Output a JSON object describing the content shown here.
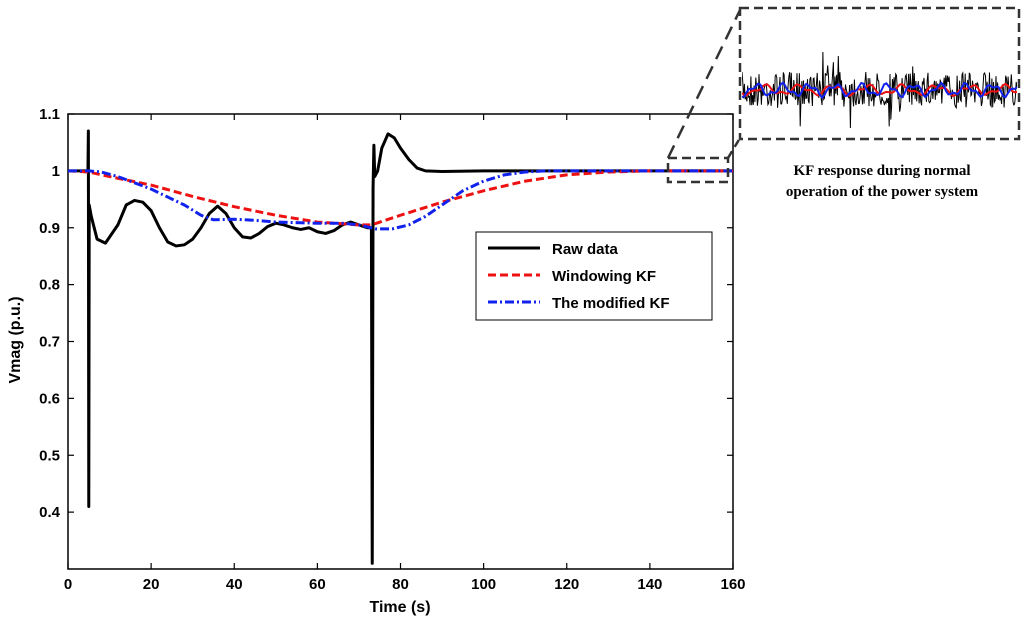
{
  "chart_data": {
    "type": "line",
    "title": "",
    "xlabel": "Time (s)",
    "ylabel": "Vmag (p.u.)",
    "xlim": [
      0,
      160
    ],
    "ylim": [
      0.3,
      1.1
    ],
    "xticks": [
      "0",
      "20",
      "40",
      "60",
      "80",
      "100",
      "120",
      "140",
      "160"
    ],
    "yticks": [
      "0.4",
      "0.5",
      "0.6",
      "0.7",
      "0.8",
      "0.9",
      "1",
      "1.1"
    ],
    "grid": false,
    "legend_position": "center-right",
    "series": [
      {
        "name": "Raw data",
        "color": "#000000",
        "style": "solid",
        "points": [
          [
            0,
            1
          ],
          [
            4.8,
            1
          ],
          [
            4.9,
            1.07
          ],
          [
            5.0,
            0.41
          ],
          [
            5.1,
            0.94
          ],
          [
            5.6,
            0.92
          ],
          [
            7,
            0.88
          ],
          [
            9,
            0.873
          ],
          [
            12,
            0.905
          ],
          [
            14,
            0.94
          ],
          [
            16,
            0.948
          ],
          [
            18,
            0.945
          ],
          [
            20,
            0.93
          ],
          [
            22,
            0.9
          ],
          [
            24,
            0.875
          ],
          [
            26,
            0.868
          ],
          [
            28,
            0.87
          ],
          [
            30,
            0.88
          ],
          [
            32,
            0.9
          ],
          [
            34,
            0.925
          ],
          [
            36,
            0.938
          ],
          [
            38,
            0.925
          ],
          [
            40,
            0.9
          ],
          [
            42,
            0.884
          ],
          [
            44,
            0.882
          ],
          [
            46,
            0.89
          ],
          [
            48,
            0.902
          ],
          [
            50,
            0.908
          ],
          [
            52,
            0.905
          ],
          [
            54,
            0.9
          ],
          [
            56,
            0.897
          ],
          [
            58,
            0.9
          ],
          [
            60,
            0.893
          ],
          [
            62,
            0.89
          ],
          [
            64,
            0.895
          ],
          [
            66,
            0.905
          ],
          [
            68,
            0.91
          ],
          [
            70,
            0.905
          ],
          [
            72,
            0.9
          ],
          [
            73.0,
            0.9
          ],
          [
            73.2,
            0.31
          ],
          [
            73.4,
            0.97
          ],
          [
            73.6,
            1.045
          ],
          [
            73.8,
            0.99
          ],
          [
            74.5,
            1.0
          ],
          [
            75.5,
            1.04
          ],
          [
            77,
            1.065
          ],
          [
            78.5,
            1.058
          ],
          [
            80,
            1.04
          ],
          [
            82,
            1.02
          ],
          [
            84,
            1.005
          ],
          [
            86,
            1.0
          ],
          [
            90,
            0.999
          ],
          [
            100,
            1.0
          ],
          [
            120,
            1.0
          ],
          [
            160,
            1.0
          ]
        ]
      },
      {
        "name": "Windowing KF",
        "color": "#ee1111",
        "style": "dashed",
        "points": [
          [
            0,
            1
          ],
          [
            5,
            0.998
          ],
          [
            10,
            0.99
          ],
          [
            20,
            0.975
          ],
          [
            30,
            0.955
          ],
          [
            40,
            0.937
          ],
          [
            50,
            0.922
          ],
          [
            60,
            0.91
          ],
          [
            70,
            0.905
          ],
          [
            73,
            0.905
          ],
          [
            80,
            0.922
          ],
          [
            90,
            0.945
          ],
          [
            100,
            0.965
          ],
          [
            110,
            0.982
          ],
          [
            120,
            0.993
          ],
          [
            130,
            0.998
          ],
          [
            140,
            1.0
          ],
          [
            160,
            1.0
          ]
        ]
      },
      {
        "name": "The modified KF",
        "color": "#1122ee",
        "style": "dashdot",
        "points": [
          [
            0,
            1
          ],
          [
            5,
            1.0
          ],
          [
            8,
            0.998
          ],
          [
            12,
            0.99
          ],
          [
            20,
            0.968
          ],
          [
            28,
            0.94
          ],
          [
            32,
            0.922
          ],
          [
            35,
            0.914
          ],
          [
            40,
            0.915
          ],
          [
            45,
            0.913
          ],
          [
            50,
            0.91
          ],
          [
            60,
            0.908
          ],
          [
            66,
            0.908
          ],
          [
            70,
            0.905
          ],
          [
            74,
            0.898
          ],
          [
            78,
            0.898
          ],
          [
            82,
            0.905
          ],
          [
            86,
            0.92
          ],
          [
            90,
            0.94
          ],
          [
            95,
            0.965
          ],
          [
            100,
            0.982
          ],
          [
            105,
            0.993
          ],
          [
            110,
            0.998
          ],
          [
            115,
            1.0
          ],
          [
            160,
            1.0
          ]
        ]
      }
    ],
    "annotation": {
      "text_lines": [
        "KF response during normal",
        "operation of the power system"
      ],
      "zoom_region": {
        "x": [
          144,
          159
        ],
        "y": [
          0.98,
          1.02
        ]
      }
    }
  }
}
